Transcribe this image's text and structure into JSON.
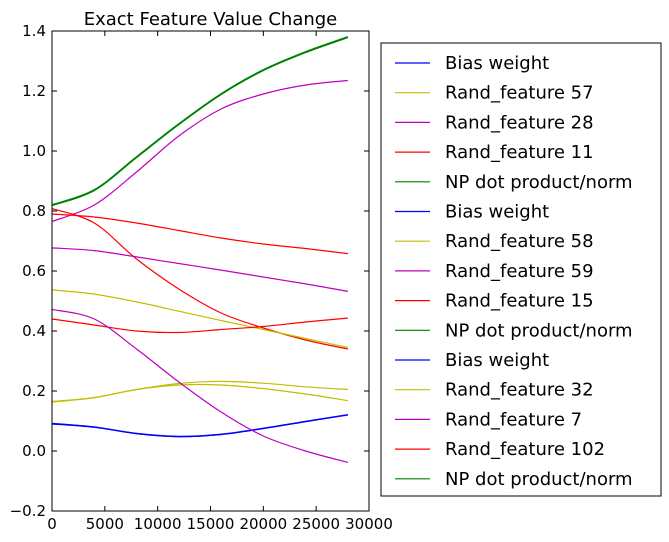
{
  "chart_data": {
    "type": "line",
    "title": "Exact Feature Value Change",
    "xlabel": "",
    "ylabel": "",
    "xlim": [
      0,
      30000
    ],
    "ylim": [
      -0.2,
      1.4
    ],
    "xticks": [
      0,
      5000,
      10000,
      15000,
      20000,
      25000,
      30000
    ],
    "xtick_labels": [
      "0",
      "5000",
      "10000",
      "15000",
      "20000",
      "25000",
      "30000"
    ],
    "yticks": [
      -0.2,
      0.0,
      0.2,
      0.4,
      0.6,
      0.8,
      1.0,
      1.2,
      1.4
    ],
    "ytick_labels": [
      "−0.2",
      "0.0",
      "0.2",
      "0.4",
      "0.6",
      "0.8",
      "1.0",
      "1.2",
      "1.4"
    ],
    "grid": false,
    "legend_position": "outside-right",
    "x": [
      0,
      4000,
      8000,
      12000,
      16000,
      20000,
      24000,
      28000
    ],
    "series": [
      {
        "name": "Bias weight",
        "color": "#0000ff",
        "values": [
          0.092,
          0.08,
          0.058,
          0.048,
          0.055,
          0.075,
          0.098,
          0.12
        ]
      },
      {
        "name": "Rand_feature 57",
        "color": "#bfbf00",
        "values": [
          0.163,
          0.178,
          0.205,
          0.225,
          0.232,
          0.226,
          0.214,
          0.205
        ]
      },
      {
        "name": "Rand_feature 28",
        "color": "#bf00bf",
        "values": [
          0.765,
          0.82,
          0.93,
          1.05,
          1.14,
          1.19,
          1.22,
          1.235
        ]
      },
      {
        "name": "Rand_feature 11",
        "color": "#ff0000",
        "values": [
          0.808,
          0.76,
          0.64,
          0.54,
          0.46,
          0.41,
          0.37,
          0.34
        ]
      },
      {
        "name": "NP dot product/norm",
        "color": "#008000",
        "values": [
          0.82,
          0.87,
          0.98,
          1.09,
          1.19,
          1.27,
          1.33,
          1.38
        ]
      },
      {
        "name": "Bias weight",
        "color": "#0000ff",
        "values": [
          0.09,
          0.079,
          0.059,
          0.049,
          0.056,
          0.076,
          0.099,
          0.121
        ]
      },
      {
        "name": "Rand_feature 58",
        "color": "#bfbf00",
        "values": [
          0.537,
          0.523,
          0.497,
          0.466,
          0.435,
          0.405,
          0.375,
          0.345
        ]
      },
      {
        "name": "Rand_feature 59",
        "color": "#bf00bf",
        "values": [
          0.677,
          0.668,
          0.647,
          0.625,
          0.603,
          0.58,
          0.557,
          0.532
        ]
      },
      {
        "name": "Rand_feature 15",
        "color": "#ff0000",
        "values": [
          0.44,
          0.42,
          0.4,
          0.395,
          0.405,
          0.415,
          0.43,
          0.443
        ]
      },
      {
        "name": "NP dot product/norm",
        "color": "#008000",
        "values": [
          0.818,
          0.868,
          0.978,
          1.088,
          1.188,
          1.268,
          1.328,
          1.378
        ]
      },
      {
        "name": "Bias weight",
        "color": "#0000ff",
        "values": [
          0.091,
          0.08,
          0.058,
          0.048,
          0.055,
          0.075,
          0.098,
          0.121
        ]
      },
      {
        "name": "Rand_feature 32",
        "color": "#bfbf00",
        "values": [
          0.165,
          0.178,
          0.205,
          0.22,
          0.22,
          0.208,
          0.19,
          0.168
        ]
      },
      {
        "name": "Rand_feature 7",
        "color": "#bf00bf",
        "values": [
          0.472,
          0.44,
          0.34,
          0.23,
          0.13,
          0.05,
          0.0,
          -0.038
        ]
      },
      {
        "name": "Rand_feature 102",
        "color": "#ff0000",
        "values": [
          0.79,
          0.78,
          0.76,
          0.735,
          0.71,
          0.69,
          0.675,
          0.658
        ]
      },
      {
        "name": "NP dot product/norm",
        "color": "#008000",
        "values": [
          0.821,
          0.871,
          0.981,
          1.091,
          1.191,
          1.271,
          1.331,
          1.381
        ]
      }
    ]
  }
}
